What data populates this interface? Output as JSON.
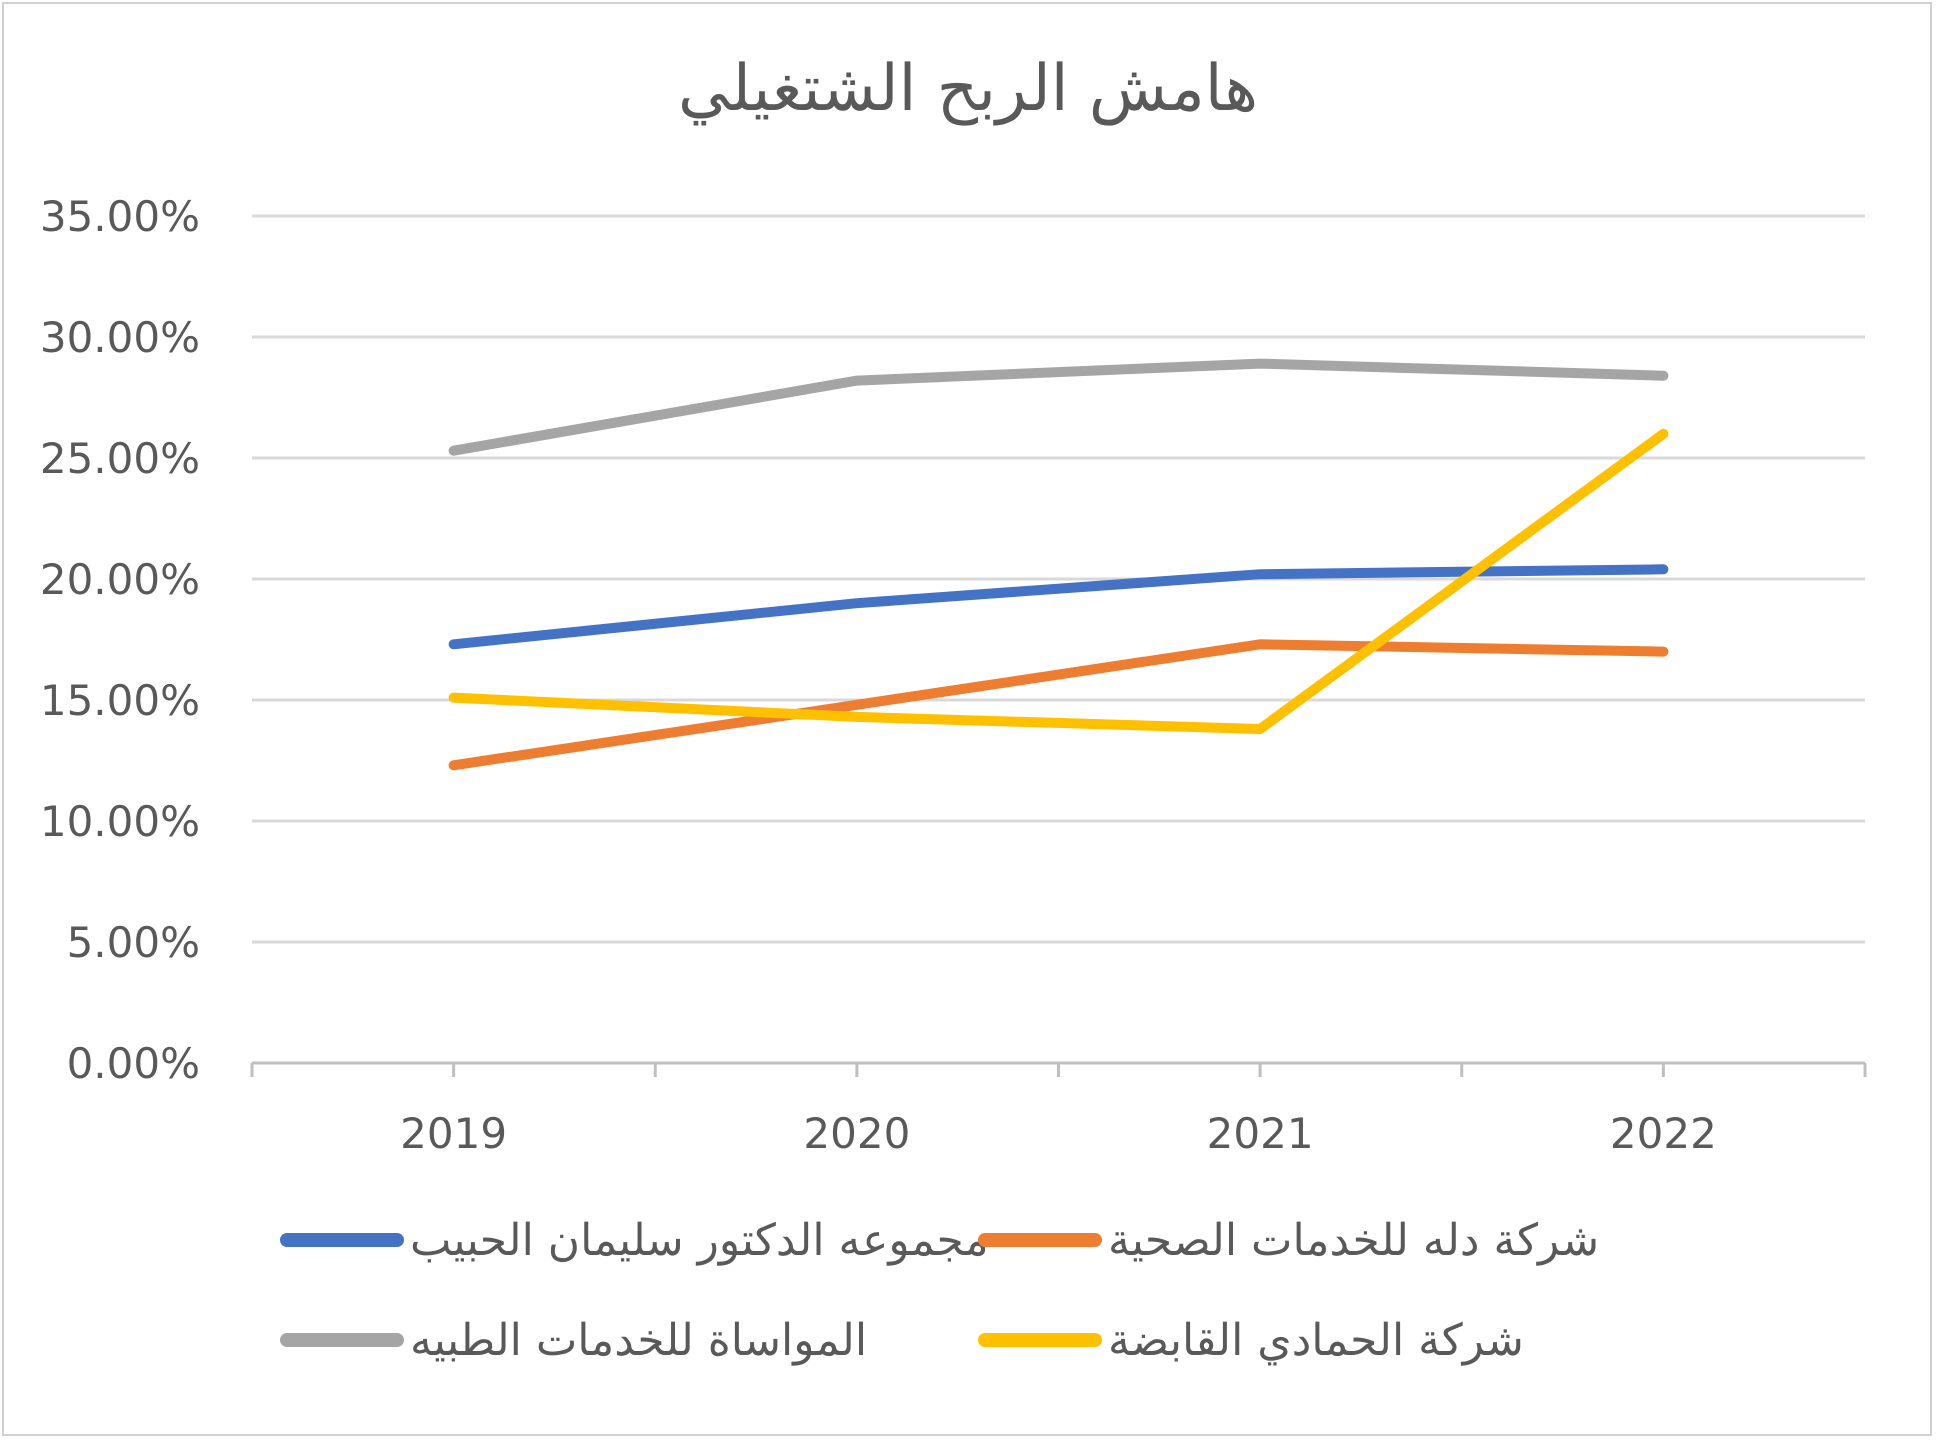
{
  "chart_data": {
    "type": "line",
    "title": "هامش الربح الشتغيلي",
    "categories": [
      "2019",
      "2020",
      "2021",
      "2022"
    ],
    "ylim": [
      0,
      35
    ],
    "ytick_values": [
      0,
      5,
      10,
      15,
      20,
      25,
      30,
      35
    ],
    "ytick_labels": [
      "0.00%",
      "5.00%",
      "10.00%",
      "15.00%",
      "20.00%",
      "25.00%",
      "30.00%",
      "35.00%"
    ],
    "grid": true,
    "legend_position": "bottom",
    "series": [
      {
        "name": "مجموعه الدكتور سليمان الحبيب",
        "color": "#4472C4",
        "values": [
          17.3,
          19.0,
          20.2,
          20.4
        ]
      },
      {
        "name": "شركة دله للخدمات الصحية",
        "color": "#ED7D31",
        "values": [
          12.3,
          14.8,
          17.3,
          17.0
        ]
      },
      {
        "name": "المواساة للخدمات الطبيه",
        "color": "#A5A5A5",
        "values": [
          25.3,
          28.2,
          28.9,
          28.4
        ]
      },
      {
        "name": "شركة الحمادي القابضة",
        "color": "#FFC000",
        "values": [
          15.1,
          14.3,
          13.8,
          26.0
        ]
      }
    ]
  }
}
